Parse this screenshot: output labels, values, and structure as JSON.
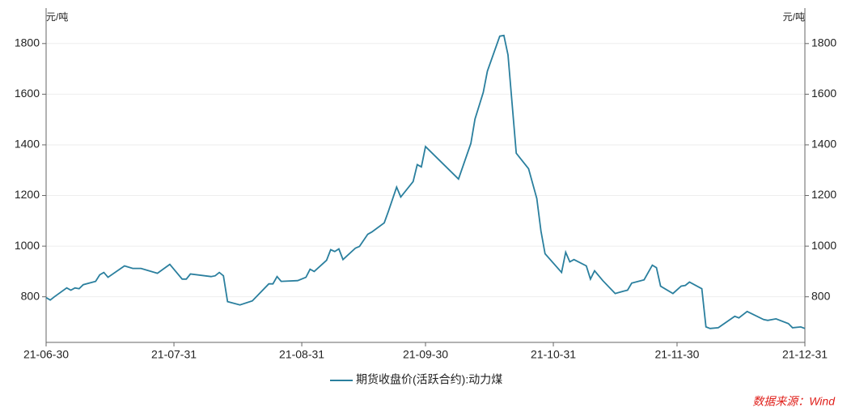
{
  "chart_data": {
    "type": "line",
    "y_unit": "元/吨",
    "source": "数据来源：Wind",
    "grid": true,
    "ylim": [
      620,
      1940
    ],
    "yticks": [
      800,
      1000,
      1200,
      1400,
      1600,
      1800
    ],
    "xlim": [
      "2021-06-30",
      "2021-12-31"
    ],
    "xticks": [
      {
        "value": "2021-06-30",
        "label": "21-06-30"
      },
      {
        "value": "2021-07-31",
        "label": "21-07-31"
      },
      {
        "value": "2021-08-31",
        "label": "21-08-31"
      },
      {
        "value": "2021-09-30",
        "label": "21-09-30"
      },
      {
        "value": "2021-10-31",
        "label": "21-10-31"
      },
      {
        "value": "2021-11-30",
        "label": "21-11-30"
      },
      {
        "value": "2021-12-31",
        "label": "21-12-31"
      }
    ],
    "x": [
      "2021-06-30",
      "2021-07-01",
      "2021-07-02",
      "2021-07-05",
      "2021-07-06",
      "2021-07-07",
      "2021-07-08",
      "2021-07-09",
      "2021-07-12",
      "2021-07-13",
      "2021-07-14",
      "2021-07-15",
      "2021-07-19",
      "2021-07-21",
      "2021-07-23",
      "2021-07-27",
      "2021-07-30",
      "2021-08-02",
      "2021-08-03",
      "2021-08-04",
      "2021-08-09",
      "2021-08-10",
      "2021-08-11",
      "2021-08-12",
      "2021-08-13",
      "2021-08-16",
      "2021-08-19",
      "2021-08-23",
      "2021-08-24",
      "2021-08-25",
      "2021-08-26",
      "2021-08-30",
      "2021-09-01",
      "2021-09-02",
      "2021-09-03",
      "2021-09-06",
      "2021-09-07",
      "2021-09-08",
      "2021-09-09",
      "2021-09-10",
      "2021-09-13",
      "2021-09-14",
      "2021-09-16",
      "2021-09-17",
      "2021-09-20",
      "2021-09-21",
      "2021-09-23",
      "2021-09-24",
      "2021-09-27",
      "2021-09-28",
      "2021-09-29",
      "2021-09-30",
      "2021-10-08",
      "2021-10-11",
      "2021-10-12",
      "2021-10-14",
      "2021-10-15",
      "2021-10-18",
      "2021-10-19",
      "2021-10-20",
      "2021-10-22",
      "2021-10-25",
      "2021-10-27",
      "2021-10-28",
      "2021-10-29",
      "2021-11-02",
      "2021-11-03",
      "2021-11-04",
      "2021-11-05",
      "2021-11-08",
      "2021-11-09",
      "2021-11-10",
      "2021-11-12",
      "2021-11-15",
      "2021-11-17",
      "2021-11-18",
      "2021-11-19",
      "2021-11-22",
      "2021-11-24",
      "2021-11-25",
      "2021-11-26",
      "2021-11-29",
      "2021-12-01",
      "2021-12-02",
      "2021-12-03",
      "2021-12-06",
      "2021-12-07",
      "2021-12-08",
      "2021-12-10",
      "2021-12-14",
      "2021-12-15",
      "2021-12-17",
      "2021-12-21",
      "2021-12-22",
      "2021-12-24",
      "2021-12-27",
      "2021-12-28",
      "2021-12-30",
      "2021-12-31"
    ],
    "series": [
      {
        "name": "期货收盘价(活跃合约):动力煤",
        "color": "#2a7f9e",
        "values": [
          797,
          787,
          800,
          835,
          826,
          835,
          832,
          848,
          861,
          887,
          896,
          877,
          922,
          912,
          912,
          893,
          928,
          870,
          870,
          890,
          880,
          883,
          896,
          883,
          781,
          768,
          784,
          851,
          851,
          880,
          861,
          864,
          877,
          909,
          900,
          944,
          986,
          979,
          989,
          947,
          992,
          999,
          1047,
          1056,
          1092,
          1137,
          1233,
          1194,
          1255,
          1322,
          1313,
          1393,
          1265,
          1406,
          1502,
          1607,
          1691,
          1829,
          1832,
          1755,
          1367,
          1306,
          1188,
          1060,
          970,
          896,
          976,
          938,
          947,
          922,
          870,
          903,
          864,
          813,
          822,
          826,
          854,
          867,
          925,
          915,
          842,
          813,
          842,
          845,
          858,
          832,
          681,
          675,
          678,
          723,
          717,
          742,
          710,
          707,
          713,
          694,
          678,
          681,
          675
        ]
      }
    ]
  }
}
